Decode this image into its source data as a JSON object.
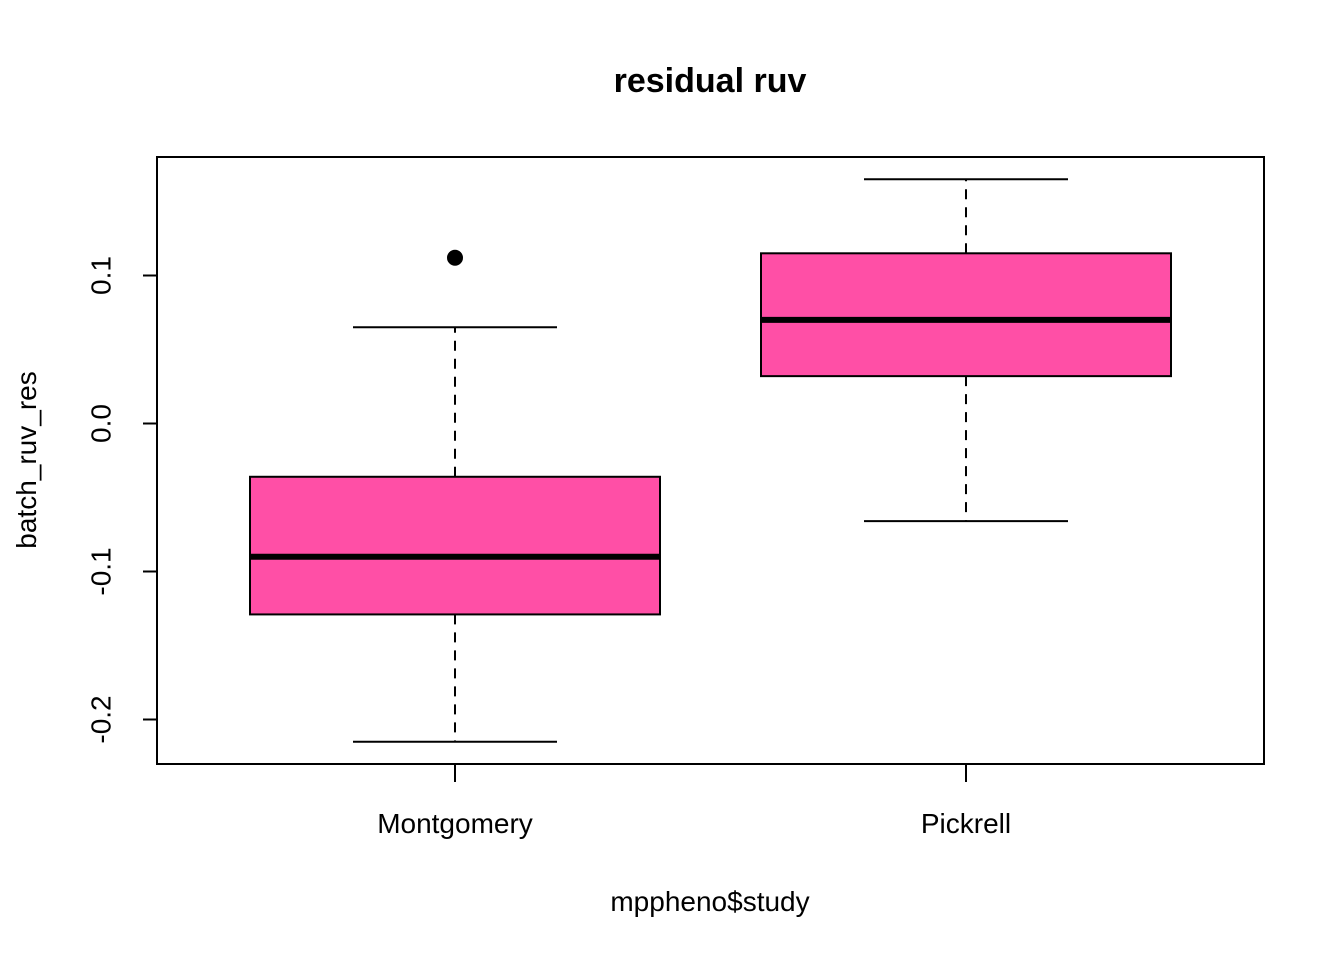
{
  "chart_data": {
    "type": "boxplot",
    "title": "residual ruv",
    "xlabel": "mppheno$study",
    "ylabel": "batch_ruv_res",
    "categories": [
      "Montgomery",
      "Pickrell"
    ],
    "ylim": [
      -0.23,
      0.18
    ],
    "yticks": [
      {
        "value": -0.2,
        "label": "-0.2"
      },
      {
        "value": -0.1,
        "label": "-0.1"
      },
      {
        "value": 0.0,
        "label": "0.0"
      },
      {
        "value": 0.1,
        "label": "0.1"
      }
    ],
    "boxes": [
      {
        "category": "Montgomery",
        "whisker_low": -0.215,
        "q1": -0.129,
        "median": -0.09,
        "q3": -0.036,
        "whisker_high": 0.065,
        "outliers": [
          0.112
        ]
      },
      {
        "category": "Pickrell",
        "whisker_low": -0.066,
        "q1": 0.032,
        "median": 0.07,
        "q3": 0.115,
        "whisker_high": 0.165,
        "outliers": []
      }
    ],
    "box_color": "#FF4FA6",
    "grid": false,
    "legend": "none"
  }
}
